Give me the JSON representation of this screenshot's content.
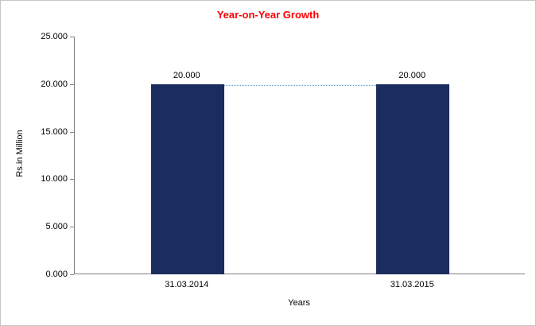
{
  "chart_data": {
    "type": "bar",
    "title": "Year-on-Year Growth",
    "categories": [
      "31.03.2014",
      "31.03.2015"
    ],
    "values": [
      20,
      20
    ],
    "data_labels": [
      "20.000",
      "20.000"
    ],
    "xlabel": "Years",
    "ylabel": "Rs.in Million",
    "ylim": [
      0,
      25
    ],
    "ytick_labels": [
      "0.000",
      "5.000",
      "10.000",
      "15.000",
      "20.000",
      "25.000"
    ],
    "grid": false,
    "legend": "none",
    "bar_color": "#1b2c5e",
    "connector_color": "#5b9bd5",
    "title_color": "#ff0000",
    "axis_color": "#808080",
    "text_color": "#000000"
  }
}
